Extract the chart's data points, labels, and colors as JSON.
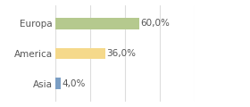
{
  "categories": [
    "Asia",
    "America",
    "Europa"
  ],
  "values": [
    4.0,
    36.0,
    60.0
  ],
  "bar_colors": [
    "#7b9ec4",
    "#f5d98b",
    "#b5c98e"
  ],
  "labels": [
    "4,0%",
    "36,0%",
    "60,0%"
  ],
  "xlim": [
    0,
    100
  ],
  "background_color": "#ffffff",
  "bar_height": 0.38,
  "label_fontsize": 7.5,
  "tick_fontsize": 7.5,
  "text_color": "#555555",
  "grid_color": "#dddddd"
}
